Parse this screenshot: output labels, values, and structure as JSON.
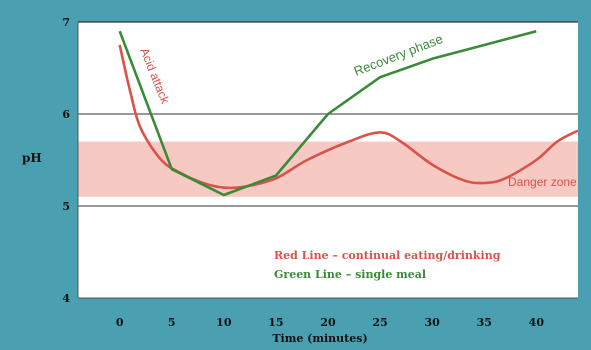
{
  "chart_data": {
    "type": "line",
    "title": "",
    "xlabel": "Time (minutes)",
    "ylabel": "pH",
    "xlim": [
      -4,
      44
    ],
    "ylim": [
      4,
      7
    ],
    "x_ticks": [
      0,
      5,
      10,
      15,
      20,
      25,
      30,
      35,
      40
    ],
    "y_ticks": [
      4,
      5,
      6,
      7
    ],
    "grid": "horizontal lines at pH 5, 6, 7",
    "danger_zone": {
      "label": "Danger zone",
      "y_range": [
        5.1,
        5.7
      ]
    },
    "series": [
      {
        "name": "Red Line – continual eating/drinking",
        "color": "#d9534a",
        "points": [
          [
            0,
            6.75
          ],
          [
            1,
            6.25
          ],
          [
            2,
            5.85
          ],
          [
            4,
            5.5
          ],
          [
            6,
            5.35
          ],
          [
            8,
            5.25
          ],
          [
            10,
            5.2
          ],
          [
            12,
            5.21
          ],
          [
            15,
            5.3
          ],
          [
            18,
            5.5
          ],
          [
            22,
            5.7
          ],
          [
            25,
            5.8
          ],
          [
            27,
            5.7
          ],
          [
            30,
            5.45
          ],
          [
            33,
            5.28
          ],
          [
            35,
            5.25
          ],
          [
            37,
            5.3
          ],
          [
            40,
            5.5
          ],
          [
            42,
            5.7
          ],
          [
            44,
            5.82
          ]
        ]
      },
      {
        "name": "Green Line – single meal",
        "color": "#3a8a3a",
        "points": [
          [
            0,
            6.9
          ],
          [
            5,
            5.4
          ],
          [
            10,
            5.12
          ],
          [
            15,
            5.33
          ],
          [
            20,
            6.0
          ],
          [
            25,
            6.4
          ],
          [
            30,
            6.6
          ],
          [
            40,
            6.9
          ]
        ]
      }
    ],
    "annotations": {
      "acid_attack": "Acid attack",
      "recovery_phase": "Recovery phase"
    },
    "legend": {
      "position": "bottom-right",
      "red_label": "Red Line – continual eating/drinking",
      "green_label": "Green Line – single meal"
    }
  },
  "colors": {
    "background": "#4a9fb0",
    "plot_bg": "#ffffff",
    "danger_fill": "#f7c9c3",
    "red": "#d9534a",
    "green": "#3a8a3a"
  }
}
